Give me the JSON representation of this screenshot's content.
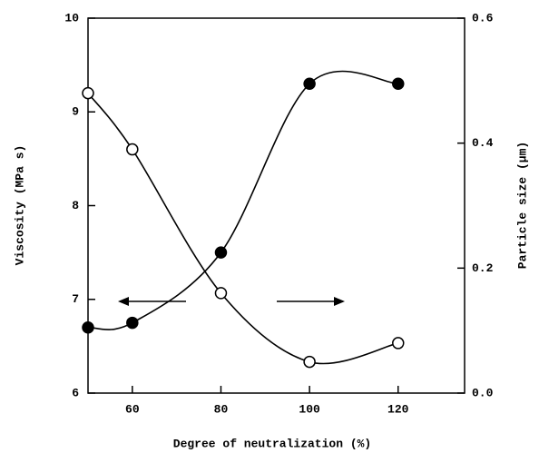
{
  "chart_data": {
    "type": "line",
    "x_label": "Degree of neutralization (%)",
    "y_label": "Viscosity (MPa s)",
    "y2_label": "Particle size (μm)",
    "x": [
      50,
      60,
      80,
      100,
      120
    ],
    "series": [
      {
        "color": "#000000",
        "marker": "filled",
        "values": [
          6.7,
          6.75,
          7.5,
          9.3,
          9.3
        ]
      },
      {
        "color": "#000000",
        "marker": "open",
        "axis": "y2",
        "values": [
          0.48,
          0.39,
          0.16,
          0.05,
          0.08
        ]
      }
    ],
    "xlim": [
      50,
      135
    ],
    "xticks": [
      60,
      80,
      100,
      120
    ],
    "ylim": [
      6,
      10
    ],
    "yticks": [
      6,
      7,
      8,
      9,
      10
    ],
    "y2lim": [
      0,
      0.6
    ],
    "y2ticks": [
      {
        "value": 0,
        "label": "0.0"
      },
      0.2,
      0.4,
      0.6
    ]
  }
}
